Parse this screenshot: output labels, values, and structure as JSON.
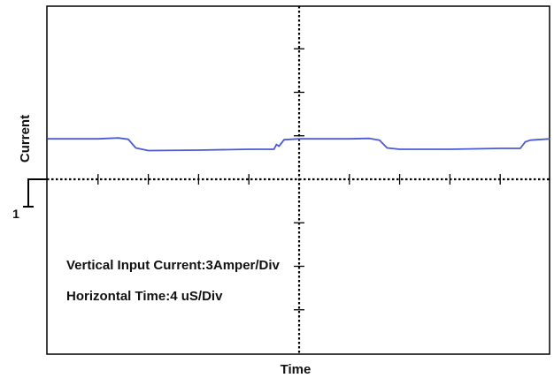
{
  "chart_data": {
    "type": "line",
    "title": "",
    "xlabel": "Time",
    "ylabel": "Current",
    "annotations": [
      "Vertical Input Current:3Amper/Div",
      "Horizontal Time:4 uS/Div"
    ],
    "x_divisions": 10,
    "y_divisions": 8,
    "x_range_div": [
      -5,
      5
    ],
    "y_range_div": [
      -4,
      4
    ],
    "x_unit_per_div": "4 uS",
    "y_unit_per_div": "3 A",
    "ground_marker": "1",
    "grid": false,
    "series": [
      {
        "color": "#4a5bd4",
        "x_div": [
          -5.0,
          -4.0,
          -3.6,
          -3.4,
          -3.25,
          -3.0,
          -2.0,
          -1.0,
          -0.5,
          -0.45,
          -0.4,
          -0.3,
          0.0,
          1.0,
          1.4,
          1.6,
          1.75,
          2.0,
          3.0,
          4.0,
          4.4,
          4.5,
          4.6,
          5.0
        ],
        "y_div": [
          0.93,
          0.93,
          0.95,
          0.92,
          0.72,
          0.66,
          0.67,
          0.69,
          0.69,
          0.8,
          0.76,
          0.91,
          0.93,
          0.93,
          0.94,
          0.9,
          0.72,
          0.69,
          0.69,
          0.71,
          0.71,
          0.86,
          0.9,
          0.93
        ]
      }
    ]
  }
}
